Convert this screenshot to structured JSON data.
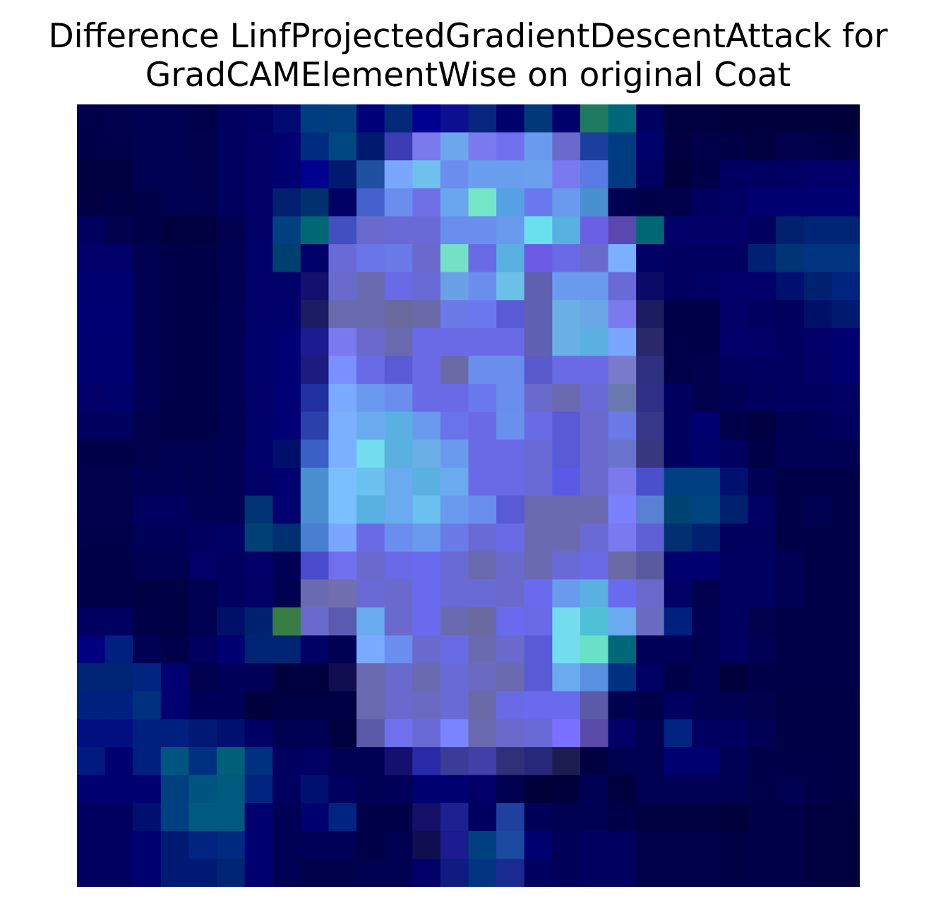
{
  "chart_data": {
    "type": "heatmap",
    "title_line1": "Difference LinfProjectedGradientDescentAttack for",
    "title_line2": "GradCAMElementWise on original Coat",
    "rows": 28,
    "cols": 28,
    "grid": false,
    "axes_visible": false,
    "colors": {
      "background": "#00003a",
      "dark_blue": "#000060",
      "navy": "#000080",
      "teal": "#006874",
      "green": "#207b60",
      "sea_green": "#3a7d44",
      "lavender": "#6a6acc",
      "periwinkle": "#6a7aee",
      "sky": "#6aaae6",
      "cyan": "#74dcef",
      "mint": "#74e0c6"
    },
    "cells": [
      "00004a",
      "00004c",
      "000052",
      "000050",
      "00004a",
      "000060",
      "000064",
      "000a70",
      "003d80",
      "003e80",
      "000078",
      "002a78",
      "000090",
      "0c1090",
      "082680",
      "00006a",
      "00387a",
      "00006a",
      "1f7a60",
      "00687a",
      "000060",
      "00003e",
      "000040",
      "00003c",
      "00003c",
      "00003c",
      "00003c",
      "00003a",
      "000048",
      "00004a",
      "000050",
      "000050",
      "00004c",
      "000060",
      "000066",
      "000070",
      "002c80",
      "004680",
      "001a70",
      "3c3cb4",
      "7a7aee",
      "6ea6ee",
      "7a7aee",
      "7070ee",
      "6a9aee",
      "6a6acc",
      "1c40a0",
      "003c80",
      "00006a",
      "000042",
      "00004a",
      "000046",
      "000040",
      "00004c",
      "00004a",
      "000044",
      "000040",
      "000040",
      "000052",
      "000050",
      "00004e",
      "000060",
      "000066",
      "000070",
      "000090",
      "001a70",
      "2050a0",
      "7aa6ff",
      "70c0ee",
      "6a8eee",
      "6a9eee",
      "6a9eee",
      "6aa0ee",
      "7a7aee",
      "5a7ae6",
      "003a80",
      "000062",
      "00003c",
      "000048",
      "000060",
      "000060",
      "000064",
      "000068",
      "000068",
      "000042",
      "000044",
      "000048",
      "000050",
      "000050",
      "00005e",
      "000066",
      "00206e",
      "00306e",
      "000064",
      "4460cc",
      "6a8eee",
      "7070e6",
      "6aa6ee",
      "74e6c6",
      "58a0e6",
      "6a7aee",
      "6a9aee",
      "4a90d0",
      "000050",
      "000048",
      "00004a",
      "000060",
      "000064",
      "000070",
      "000070",
      "000070",
      "000070",
      "00005e",
      "00004c",
      "000048",
      "00003e",
      "000040",
      "00004e",
      "000066",
      "004080",
      "006874",
      "4050c0",
      "6a6acc",
      "6a6ad6",
      "6a6ad6",
      "6a8eee",
      "6a8eee",
      "6a9aee",
      "6ae0ee",
      "58b0e0",
      "6a60e6",
      "5a48b0",
      "006874",
      "000068",
      "000066",
      "000066",
      "000060",
      "00206e",
      "002474",
      "002474",
      "000068",
      "000068",
      "000050",
      "000048",
      "000048",
      "000050",
      "00006a",
      "004070",
      "00006a",
      "6a6ad6",
      "6a74ea",
      "6a7ae6",
      "6a6acc",
      "74e0c6",
      "6a6ae6",
      "58b0e0",
      "6a5ae6",
      "6a6ae6",
      "6a6acc",
      "7ab0ff",
      "000064",
      "000060",
      "000060",
      "000060",
      "002074",
      "003474",
      "003480",
      "003480",
      "000070",
      "000070",
      "000052",
      "000048",
      "000048",
      "000052",
      "000068",
      "000068",
      "141070",
      "6a6acc",
      "6a6ab0",
      "6a6ae6",
      "6a6ad6",
      "6aa0e6",
      "6a8eee",
      "6ac0e6",
      "6060b0",
      "6a9aee",
      "6a9aee",
      "6a6ad6",
      "0a0a68",
      "000060",
      "000064",
      "000068",
      "000068",
      "001070",
      "002070",
      "002480",
      "000072",
      "000072",
      "000052",
      "000048",
      "000048",
      "000054",
      "000068",
      "00006a",
      "1c1c64",
      "6a6ab0",
      "6a6ab0",
      "6a6a9e",
      "6a6aa8",
      "6a7ae6",
      "6a7aee",
      "5a5ad6",
      "6060b0",
      "6ab0e6",
      "6aa6e6",
      "7a7aee",
      "1c1c60",
      "000048",
      "000048",
      "000066",
      "000060",
      "00005e",
      "001068",
      "001a70",
      "000070",
      "000070",
      "000052",
      "000048",
      "000048",
      "000054",
      "00006a",
      "000074",
      "1c1c90",
      "7a7aee",
      "6a6acc",
      "6a6ab0",
      "6a6ae6",
      "6a6ae6",
      "6a6ae6",
      "6a6ae6",
      "6060b0",
      "6ab0e6",
      "5ab0e0",
      "7aa6ff",
      "28286a",
      "00004a",
      "000048",
      "000068",
      "000066",
      "000060",
      "000068",
      "000070",
      "000070",
      "000070",
      "000054",
      "000048",
      "000048",
      "000054",
      "00006a",
      "000074",
      "1c1c80",
      "7a90ff",
      "6a6ae6",
      "5a5ad6",
      "6a6ae6",
      "6a6aa6",
      "6a8eee",
      "6a8eee",
      "5a5acc",
      "6a6ae6",
      "6a6ae6",
      "7a7acc",
      "303080",
      "00004a",
      "00004c",
      "00005e",
      "000060",
      "000060",
      "000066",
      "000070",
      "000068",
      "00006a",
      "000054",
      "000048",
      "000048",
      "000054",
      "000068",
      "000074",
      "2030a0",
      "7aaaff",
      "6a9aee",
      "6a8eee",
      "6a6ae6",
      "6a6ae6",
      "6a7aee",
      "6a8eee",
      "6a6acc",
      "6a6ab0",
      "6a6ad6",
      "6a7ab0",
      "303088",
      "00005e",
      "00004c",
      "000054",
      "00005e",
      "000060",
      "000060",
      "000064",
      "00005e",
      "00005e",
      "00004c",
      "000048",
      "000048",
      "000052",
      "00006a",
      "000074",
      "2a40aa",
      "7ab0ff",
      "6aaaee",
      "5ab0e0",
      "6a9aee",
      "6a74ea",
      "6a6ae6",
      "6a90ee",
      "6a6ae6",
      "5a5ad6",
      "6a6acc",
      "6a7ae6",
      "38388a",
      "00005e",
      "000070",
      "00004a",
      "000042",
      "000052",
      "000056",
      "00005e",
      "000048",
      "000048",
      "00004c",
      "000050",
      "000050",
      "000054",
      "00006a",
      "00106a",
      "3a60c6",
      "7ab0ff",
      "74dcef",
      "5ab0e0",
      "6ab0e6",
      "6a9aee",
      "6a6ae6",
      "6a6ae6",
      "6a6ad6",
      "5a5ad6",
      "6a6acc",
      "6a74cc",
      "383880",
      "00005e",
      "00006a",
      "000060",
      "000048",
      "000054",
      "000054",
      "000052",
      "00004c",
      "00004c",
      "000054",
      "000054",
      "000050",
      "000054",
      "000066",
      "000070",
      "4a90d0",
      "7ac0ff",
      "6ac0ee",
      "6aaaee",
      "5ab0e0",
      "6aaaee",
      "6a6ae6",
      "6a6ae6",
      "6a6ad6",
      "5a5ae6",
      "6a6acc",
      "7a7aee",
      "4a50cc",
      "004080",
      "004080",
      "00106e",
      "000054",
      "000048",
      "000048",
      "000048",
      "00004c",
      "00004c",
      "000060",
      "000060",
      "000054",
      "000054",
      "003474",
      "000070",
      "4a90d0",
      "7ac0ff",
      "58b0e0",
      "6aaaee",
      "6ac0ee",
      "6a9aee",
      "6a8eee",
      "5a5ad6",
      "6a6ab0",
      "6a6ab0",
      "6a6ab0",
      "7a80ff",
      "5a80d6",
      "004474",
      "004480",
      "002070",
      "000064",
      "000048",
      "000050",
      "000048",
      "00004a",
      "00004a",
      "000058",
      "000058",
      "000060",
      "000062",
      "004074",
      "003070",
      "4a7ed0",
      "7aa6ff",
      "6a6ae6",
      "6a8eee",
      "6a9aee",
      "6a7ae6",
      "6a6ad6",
      "6a6ae6",
      "6a6ab0",
      "6a6ab0",
      "6a6ad6",
      "7a7aee",
      "6060d6",
      "003070",
      "002070",
      "00005e",
      "00005e",
      "000048",
      "000048",
      "000048",
      "000048",
      "000048",
      "000052",
      "000052",
      "000068",
      "000060",
      "000068",
      "000054",
      "4a4acc",
      "7070ee",
      "6a6acc",
      "6a6ae6",
      "6a6aee",
      "6a6ad6",
      "6a6ab0",
      "6a6acc",
      "6a6ab0",
      "6a6ad6",
      "6a6ae6",
      "6a6aa6",
      "5a5a9e",
      "00006e",
      "00006e",
      "000060",
      "000060",
      "000054",
      "000048",
      "000048",
      "000048",
      "000048",
      "000044",
      "000044",
      "000050",
      "000060",
      "000066",
      "000050",
      "6a6ab0",
      "7070b0",
      "6a6ad6",
      "6a6acc",
      "6a6aee",
      "6a6ad6",
      "6a6ad6",
      "6a6acc",
      "6a6aee",
      "6a9aee",
      "5ab0e0",
      "6a6aee",
      "6a6acc",
      "000066",
      "00004e",
      "000060",
      "000060",
      "000054",
      "000048",
      "000048",
      "000060",
      "000060",
      "000048",
      "000044",
      "000050",
      "001068",
      "002070",
      "3a7d44",
      "6a6acc",
      "5a5ab0",
      "6aaaee",
      "6a6acc",
      "6a6aee",
      "6a6ab0",
      "6a6aa0",
      "6a6aee",
      "6a6ae6",
      "74dcef",
      "50c0d6",
      "6aaaee",
      "6a6ac0",
      "00207e",
      "000054",
      "000060",
      "00004c",
      "000048",
      "000048",
      "000048",
      "000080",
      "002080",
      "000054",
      "000048",
      "000060",
      "000070",
      "002474",
      "002474",
      "000064",
      "000050",
      "7aaaff",
      "6a8eee",
      "6a6acc",
      "6a6ae6",
      "6a6ab0",
      "6a6acc",
      "5a5ad6",
      "74dcef",
      "6ae0c6",
      "00687a",
      "000058",
      "000058",
      "000050",
      "000060",
      "000054",
      "000048",
      "000048",
      "000048",
      "002474",
      "002474",
      "002480",
      "000070",
      "00004e",
      "000058",
      "000058",
      "000040",
      "000040",
      "100e50",
      "6a6ab0",
      "6a6acc",
      "6a6ab0",
      "6a6ad6",
      "6a6ac0",
      "6a6ab0",
      "5a5ad6",
      "6aaaee",
      "5a90e0",
      "003080",
      "000064",
      "000048",
      "000054",
      "00003c",
      "000048",
      "000048",
      "000048",
      "000048",
      "002080",
      "002080",
      "003080",
      "000070",
      "000058",
      "000058",
      "00003e",
      "000044",
      "000044",
      "000044",
      "6a6ab0",
      "6a6acc",
      "6a6ac0",
      "6a6ad6",
      "6a6aa8",
      "6a6ae6",
      "6a6aee",
      "6a6aee",
      "5a5aa8",
      "000050",
      "000048",
      "000060",
      "000054",
      "000050",
      "00004c",
      "000044",
      "000044",
      "000044",
      "001080",
      "001080",
      "002080",
      "002080",
      "001a74",
      "001070",
      "000064",
      "000050",
      "000054",
      "000040",
      "5a5aa8",
      "7070ee",
      "6a6ad6",
      "7a84ff",
      "6a6ab0",
      "6a6acc",
      "6a6ad6",
      "7a70ff",
      "5a4aa8",
      "000068",
      "000050",
      "002480",
      "000060",
      "000060",
      "000054",
      "000044",
      "000044",
      "000044",
      "001a80",
      "000070",
      "002080",
      "005480",
      "003080",
      "00607a",
      "003080",
      "000060",
      "000064",
      "000054",
      "000054",
      "141070",
      "2a2aa8",
      "3c3c98",
      "4040a8",
      "303078",
      "28287a",
      "1c1c50",
      "000040",
      "000050",
      "000050",
      "000070",
      "000070",
      "000054",
      "000048",
      "000048",
      "000048",
      "000044",
      "000070",
      "000070",
      "000070",
      "004080",
      "005480",
      "005a80",
      "002480",
      "000060",
      "001070",
      "000060",
      "000054",
      "000058",
      "000070",
      "000070",
      "000068",
      "000052",
      "00003a",
      "00003c",
      "000054",
      "00003e",
      "000054",
      "000054",
      "000054",
      "000050",
      "00004a",
      "000050",
      "000048",
      "000044",
      "000060",
      "000060",
      "001070",
      "004080",
      "005a80",
      "005a80",
      "000070",
      "000054",
      "000070",
      "002480",
      "000048",
      "000048",
      "141068",
      "1c2090",
      "000060",
      "2040a0",
      "000058",
      "000050",
      "000050",
      "000048",
      "000040",
      "000040",
      "000040",
      "00003c",
      "000048",
      "000048",
      "000040",
      "000040",
      "000060",
      "000060",
      "000070",
      "001a74",
      "002480",
      "002a80",
      "000070",
      "000054",
      "000058",
      "000058",
      "000048",
      "000050",
      "100e50",
      "1c1c90",
      "004080",
      "1c4aa0",
      "000070",
      "000058",
      "000060",
      "000060",
      "00004a",
      "00004a",
      "00004a",
      "000044",
      "000048",
      "000048",
      "000040",
      "000040",
      "000060",
      "000060",
      "000070",
      "001a74",
      "001a74",
      "002474",
      "000070",
      "000054",
      "00004a",
      "00004a",
      "000050",
      "000050",
      "000068",
      "101a80",
      "003480",
      "1a2a90",
      "000060",
      "000058",
      "000060",
      "000060",
      "00004a",
      "00004a",
      "00004a",
      "000044",
      "000048",
      "000048",
      "000040",
      "000040"
    ]
  }
}
